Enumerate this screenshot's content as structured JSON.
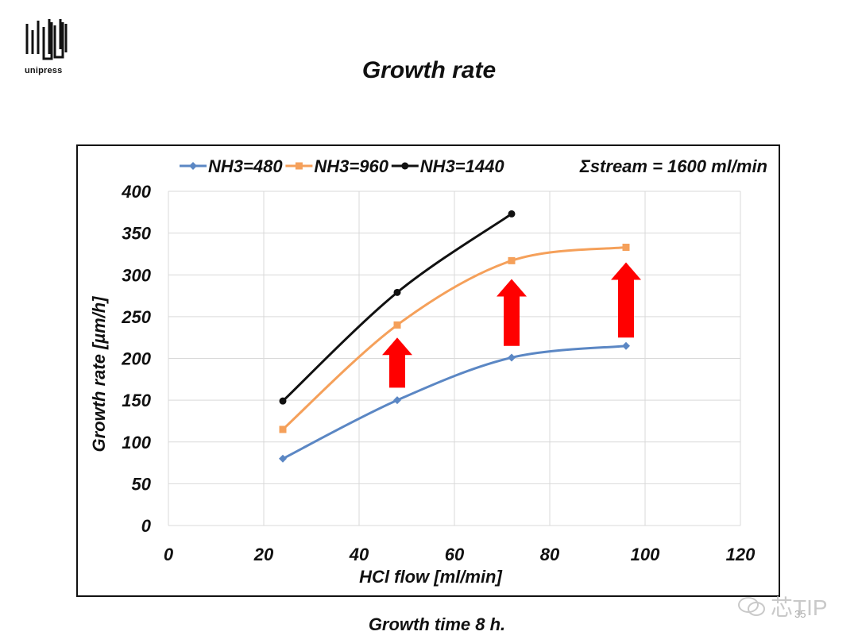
{
  "logo": {
    "name": "unipress-logo",
    "text": "unipress"
  },
  "slide_title": "Growth rate",
  "footer": "Growth time 8 h.",
  "watermark": "芯TIP",
  "page_number": "35",
  "colors": {
    "series1": "#5b87c4",
    "series2": "#f5a05a",
    "series3": "#111111",
    "arrow": "#ff0000",
    "grid": "#d9d9d9"
  },
  "chart_data": {
    "type": "line",
    "xlabel": "HCl flow [ml/min]",
    "ylabel": "Growth rate [µm/h]",
    "xlim": [
      0,
      120
    ],
    "ylim": [
      0,
      400
    ],
    "xticks": [
      0,
      20,
      40,
      60,
      80,
      100,
      120
    ],
    "yticks": [
      0,
      50,
      100,
      150,
      200,
      250,
      300,
      350,
      400
    ],
    "grid": true,
    "legend_position": "top-left",
    "annotation": "Σstream = 1600 ml/min",
    "series": [
      {
        "name": "NH3=480",
        "marker": "diamond",
        "color": "#5b87c4",
        "x": [
          24,
          48,
          72,
          96
        ],
        "y": [
          80,
          150,
          201,
          215
        ]
      },
      {
        "name": "NH3=960",
        "marker": "square",
        "color": "#f5a05a",
        "x": [
          24,
          48,
          72,
          96
        ],
        "y": [
          115,
          240,
          317,
          333
        ]
      },
      {
        "name": "NH3=1440",
        "marker": "circle",
        "color": "#111111",
        "x": [
          24,
          48,
          72
        ],
        "y": [
          149,
          279,
          373
        ]
      }
    ],
    "arrows": [
      {
        "x": 48,
        "y_from": 165,
        "y_to": 225
      },
      {
        "x": 72,
        "y_from": 215,
        "y_to": 295
      },
      {
        "x": 96,
        "y_from": 225,
        "y_to": 315
      }
    ]
  }
}
